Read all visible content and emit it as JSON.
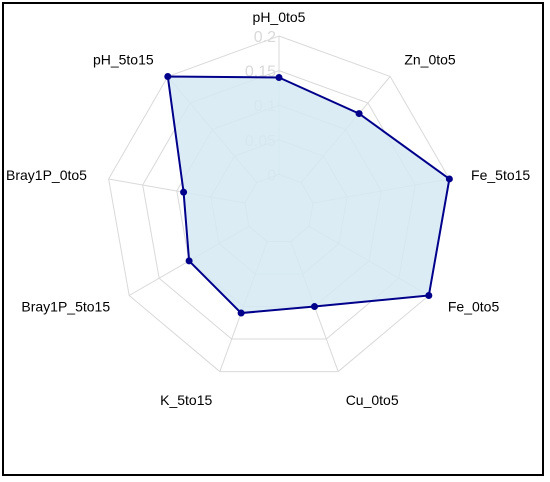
{
  "chart_data": {
    "type": "radar",
    "axes": [
      "pH_0to5",
      "Zn_0to5",
      "Fe_5to15",
      "Fe_0to5",
      "Cu_0to5",
      "K_5to15",
      "Bray1P_5to15",
      "Bray1P_0to5",
      "pH_5to15"
    ],
    "values": [
      0.14,
      0.13,
      0.2,
      0.2,
      0.1,
      0.11,
      0.1,
      0.09,
      0.2
    ],
    "range": [
      0,
      0.2
    ],
    "ticks": [
      0,
      0.05,
      0.1,
      0.15,
      0.2
    ],
    "tick_labels": [
      "0",
      "0.05",
      "0.1",
      "0.15",
      "0.2"
    ],
    "grid": true,
    "colors": {
      "fill": "#d5e9f2",
      "line": "#00008b",
      "point": "#00008b",
      "grid": "#d9d9d9",
      "tick_text": "#d9d9d9"
    }
  }
}
